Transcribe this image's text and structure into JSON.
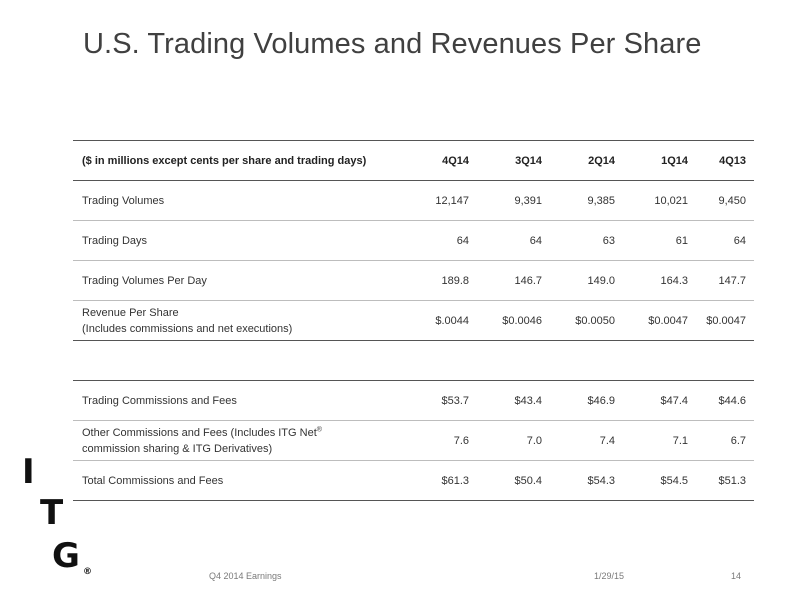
{
  "slide": {
    "title": "U.S. Trading Volumes and Revenues Per Share"
  },
  "table1": {
    "header": [
      "($ in millions except cents per share and trading days)",
      "4Q14",
      "3Q14",
      "2Q14",
      "1Q14",
      "4Q13"
    ],
    "rows": [
      {
        "label": "Trading Volumes",
        "values": [
          "12,147",
          "9,391",
          "9,385",
          "10,021",
          "9,450"
        ]
      },
      {
        "label": "Trading Days",
        "values": [
          "64",
          "64",
          "63",
          "61",
          "64"
        ]
      },
      {
        "label": "Trading Volumes Per Day",
        "values": [
          "189.8",
          "146.7",
          "149.0",
          "164.3",
          "147.7"
        ]
      },
      {
        "label": "Revenue Per Share",
        "sublabel": "(Includes commissions and net executions)",
        "values": [
          "$.0044",
          "$0.0046",
          "$0.0050",
          "$0.0047",
          "$0.0047"
        ]
      }
    ]
  },
  "table2": {
    "rows": [
      {
        "label": "Trading Commissions and Fees",
        "values": [
          "$53.7",
          "$43.4",
          "$46.9",
          "$47.4",
          "$44.6"
        ]
      },
      {
        "label": "Other Commissions and Fees (Includes ITG Net",
        "label_sup": "®",
        "sublabel": "commission sharing & ITG Derivatives)",
        "values": [
          "7.6",
          "7.0",
          "7.4",
          "7.1",
          "6.7"
        ]
      },
      {
        "label": "Total Commissions and Fees",
        "values": [
          "$61.3",
          "$50.4",
          "$54.3",
          "$54.5",
          "$51.3"
        ]
      }
    ]
  },
  "logo": {
    "letters": [
      "I",
      "T",
      "G"
    ],
    "registered": "®"
  },
  "footer": {
    "event": "Q4 2014 Earnings",
    "date": "1/29/15",
    "page": "14"
  }
}
